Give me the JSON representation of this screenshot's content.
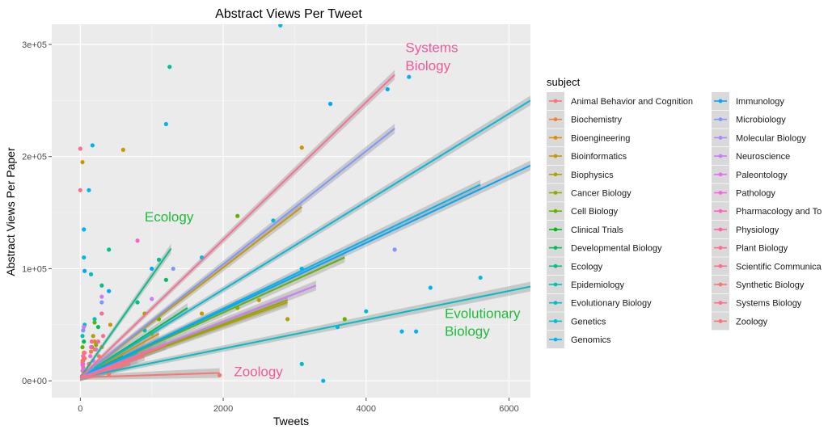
{
  "chart_data": {
    "type": "scatter",
    "title": "Abstract Views Per Tweet",
    "xlabel": "Tweets",
    "ylabel": "Abstract Views Per Paper",
    "xlim": [
      -400,
      6300
    ],
    "ylim": [
      -15000,
      318000
    ],
    "x_ticks": [
      0,
      2000,
      4000,
      6000
    ],
    "y_ticks": [
      0,
      100000,
      200000,
      300000
    ],
    "x_tick_labels": [
      "0",
      "2000",
      "4000",
      "6000"
    ],
    "y_tick_labels": [
      "0e+00",
      "1e+05",
      "2e+05",
      "3e+05"
    ],
    "grid": true,
    "legend_title": "subject",
    "legend_position": "right",
    "series": [
      {
        "name": "Animal Behavior and Cognition",
        "color": "#F8766D",
        "points": [
          [
            30,
            9000
          ],
          [
            120,
            15000
          ],
          [
            260,
            22000
          ]
        ],
        "fit": {
          "x": [
            0,
            700
          ],
          "y": [
            2000,
            15000
          ]
        }
      },
      {
        "name": "Biochemistry",
        "color": "#EC8239",
        "points": [
          [
            40,
            12000
          ],
          [
            150,
            26000
          ],
          [
            300,
            30000
          ]
        ],
        "fit": {
          "x": [
            0,
            900
          ],
          "y": [
            2000,
            30000
          ]
        }
      },
      {
        "name": "Bioengineering",
        "color": "#DB8E00",
        "points": [
          [
            60,
            20000
          ],
          [
            200,
            35000
          ],
          [
            420,
            50000
          ]
        ],
        "fit": {
          "x": [
            0,
            1100
          ],
          "y": [
            3000,
            42000
          ]
        }
      },
      {
        "name": "Bioinformatics",
        "color": "#C79800",
        "points": [
          [
            30,
            195000
          ],
          [
            3100,
            208000
          ],
          [
            600,
            206000
          ],
          [
            800,
            70000
          ],
          [
            1700,
            60000
          ],
          [
            2500,
            72000
          ]
        ],
        "fit": {
          "x": [
            0,
            3100
          ],
          "y": [
            3000,
            155000
          ]
        }
      },
      {
        "name": "Biophysics",
        "color": "#AEA200",
        "points": [
          [
            50,
            25000
          ],
          [
            180,
            40000
          ],
          [
            900,
            60000
          ],
          [
            2900,
            55000
          ]
        ],
        "fit": {
          "x": [
            0,
            2900
          ],
          "y": [
            3000,
            70000
          ]
        }
      },
      {
        "name": "Cancer Biology",
        "color": "#8FAA00",
        "points": [
          [
            40,
            18000
          ],
          [
            220,
            32000
          ],
          [
            1000,
            42000
          ],
          [
            2200,
            65000
          ]
        ],
        "fit": {
          "x": [
            0,
            2900
          ],
          "y": [
            3000,
            72000
          ]
        }
      },
      {
        "name": "Cell Biology",
        "color": "#64B200",
        "points": [
          [
            30,
            30000
          ],
          [
            200,
            52000
          ],
          [
            1100,
            55000
          ],
          [
            2200,
            147000
          ],
          [
            3700,
            55000
          ]
        ],
        "fit": {
          "x": [
            0,
            3700
          ],
          "y": [
            3000,
            110000
          ]
        }
      },
      {
        "name": "Clinical Trials",
        "color": "#00B81B",
        "points": [
          [
            40,
            22000
          ],
          [
            160,
            30000
          ]
        ],
        "fit": {
          "x": [
            0,
            600
          ],
          "y": [
            3000,
            22000
          ]
        }
      },
      {
        "name": "Developmental Biology",
        "color": "#00BD5C",
        "points": [
          [
            50,
            35000
          ],
          [
            250,
            48000
          ],
          [
            1200,
            90000
          ]
        ],
        "fit": {
          "x": [
            0,
            1500
          ],
          "y": [
            3000,
            65000
          ]
        }
      },
      {
        "name": "Ecology",
        "color": "#00C08D",
        "points": [
          [
            1250,
            280000
          ],
          [
            800,
            70000
          ],
          [
            1100,
            108000
          ],
          [
            400,
            117000
          ],
          [
            300,
            85000
          ]
        ],
        "fit": {
          "x": [
            0,
            1270
          ],
          "y": [
            3000,
            118000
          ]
        }
      },
      {
        "name": "Epidemiology",
        "color": "#00C1B2",
        "points": [
          [
            30,
            40000
          ],
          [
            200,
            55000
          ]
        ],
        "fit": {
          "x": [
            0,
            800
          ],
          "y": [
            3000,
            25000
          ]
        }
      },
      {
        "name": "Evolutionary Biology",
        "color": "#00BFC4",
        "points": [
          [
            60,
            50000
          ],
          [
            150,
            95000
          ],
          [
            900,
            45000
          ],
          [
            3100,
            15000
          ]
        ],
        "fit": {
          "x": [
            0,
            6300
          ],
          "y": [
            3000,
            84000
          ]
        }
      },
      {
        "name": "Genetics",
        "color": "#00BBDA",
        "points": [
          [
            50,
            110000
          ],
          [
            300,
            60000
          ],
          [
            1700,
            110000
          ],
          [
            2700,
            143000
          ],
          [
            4000,
            62000
          ],
          [
            5600,
            92000
          ]
        ],
        "fit": {
          "x": [
            0,
            6300
          ],
          "y": [
            3000,
            250000
          ]
        }
      },
      {
        "name": "Genomics",
        "color": "#00B4EF",
        "points": [
          [
            50,
            135000
          ],
          [
            170,
            210000
          ],
          [
            120,
            170000
          ],
          [
            1200,
            229000
          ],
          [
            2800,
            317000
          ],
          [
            3100,
            100000
          ],
          [
            3400,
            0
          ],
          [
            3600,
            48000
          ],
          [
            4500,
            44000
          ],
          [
            4700,
            44000
          ],
          [
            4600,
            271000
          ],
          [
            4900,
            83000
          ]
        ],
        "fit": {
          "x": [
            0,
            5600
          ],
          "y": [
            3000,
            175000
          ]
        }
      },
      {
        "name": "Immunology",
        "color": "#00A7FF",
        "points": [
          [
            60,
            98000
          ],
          [
            400,
            80000
          ],
          [
            1000,
            100000
          ],
          [
            3500,
            247000
          ],
          [
            4300,
            260000
          ]
        ],
        "fit": {
          "x": [
            0,
            6300
          ],
          "y": [
            3000,
            192000
          ]
        }
      },
      {
        "name": "Microbiology",
        "color": "#7F96FF",
        "points": [
          [
            40,
            45000
          ],
          [
            300,
            70000
          ],
          [
            1300,
            100000
          ],
          [
            4400,
            117000
          ]
        ],
        "fit": {
          "x": [
            0,
            4400
          ],
          "y": [
            3000,
            225000
          ]
        }
      },
      {
        "name": "Molecular Biology",
        "color": "#AC88FF",
        "points": [
          [
            40,
            15000
          ],
          [
            220,
            28000
          ]
        ],
        "fit": {
          "x": [
            0,
            800
          ],
          "y": [
            2000,
            20000
          ]
        }
      },
      {
        "name": "Neuroscience",
        "color": "#CF78FF",
        "points": [
          [
            50,
            48000
          ],
          [
            300,
            75000
          ],
          [
            1000,
            73000
          ],
          [
            2200,
            70000
          ]
        ],
        "fit": {
          "x": [
            0,
            3300
          ],
          "y": [
            3000,
            85000
          ]
        }
      },
      {
        "name": "Paleontology",
        "color": "#E76BF3",
        "points": [
          [
            40,
            10000
          ],
          [
            180,
            18000
          ]
        ],
        "fit": {
          "x": [
            0,
            500
          ],
          "y": [
            2000,
            12000
          ]
        }
      },
      {
        "name": "Pathology",
        "color": "#F763E0",
        "points": [
          [
            30,
            14000
          ],
          [
            140,
            22000
          ]
        ],
        "fit": {
          "x": [
            0,
            600
          ],
          "y": [
            2000,
            15000
          ]
        }
      },
      {
        "name": "Pharmacology and Toxicology",
        "color": "#FF61C3",
        "points": [
          [
            800,
            125000
          ],
          [
            30,
            16000
          ],
          [
            150,
            30000
          ]
        ],
        "fit": {
          "x": [
            0,
            1000
          ],
          "y": [
            2000,
            28000
          ]
        }
      },
      {
        "name": "Physiology",
        "color": "#FF62A5",
        "points": [
          [
            50,
            20000
          ],
          [
            250,
            35000
          ]
        ],
        "fit": {
          "x": [
            0,
            900
          ],
          "y": [
            2000,
            25000
          ]
        }
      },
      {
        "name": "Plant Biology",
        "color": "#FF6C91",
        "points": [
          [
            60,
            25000
          ],
          [
            320,
            40000
          ]
        ],
        "fit": {
          "x": [
            0,
            1200
          ],
          "y": [
            2000,
            32000
          ]
        }
      },
      {
        "name": "Scientific Communication and Education",
        "color": "#FF6C91",
        "points": [
          [
            40,
            22000
          ],
          [
            160,
            35000
          ]
        ],
        "fit": {
          "x": [
            0,
            900
          ],
          "y": [
            2000,
            22000
          ]
        }
      },
      {
        "name": "Synthetic Biology",
        "color": "#F8766D",
        "points": [
          [
            30,
            18000
          ],
          [
            200,
            28000
          ]
        ],
        "fit": {
          "x": [
            0,
            700
          ],
          "y": [
            2000,
            18000
          ]
        }
      },
      {
        "name": "Systems Biology",
        "color": "#FF6C91",
        "points": [
          [
            0,
            207000
          ],
          [
            0,
            170000
          ],
          [
            300,
            60000
          ]
        ],
        "fit": {
          "x": [
            0,
            4400
          ],
          "y": [
            3000,
            273000
          ]
        }
      },
      {
        "name": "Zoology",
        "color": "#F8766D",
        "points": [
          [
            1950,
            5000
          ],
          [
            100,
            8000
          ],
          [
            400,
            6000
          ]
        ],
        "fit": {
          "x": [
            0,
            1950
          ],
          "y": [
            3000,
            7000
          ]
        }
      }
    ],
    "annotations": [
      {
        "text": "Systems",
        "x": 4550,
        "y": 293000,
        "color": "#EC5A9A"
      },
      {
        "text": "Biology",
        "x": 4550,
        "y": 277000,
        "color": "#EC5A9A"
      },
      {
        "text": "Ecology",
        "x": 900,
        "y": 142000,
        "color": "#1EBB3C"
      },
      {
        "text": "Evolutionary",
        "x": 5100,
        "y": 56000,
        "color": "#1EBB3C"
      },
      {
        "text": "Biology",
        "x": 5100,
        "y": 40000,
        "color": "#1EBB3C"
      },
      {
        "text": "Zoology",
        "x": 2150,
        "y": 4000,
        "color": "#EC5A9A"
      }
    ]
  },
  "legend_columns": [
    [
      "Animal Behavior and Cognition",
      "Biochemistry",
      "Bioengineering",
      "Bioinformatics",
      "Biophysics",
      "Cancer Biology",
      "Cell Biology",
      "Clinical Trials",
      "Developmental Biology",
      "Ecology",
      "Epidemiology",
      "Evolutionary Biology",
      "Genetics",
      "Genomics"
    ],
    [
      "Immunology",
      "Microbiology",
      "Molecular Biology",
      "Neuroscience",
      "Paleontology",
      "Pathology",
      "Pharmacology and To",
      "Physiology",
      "Plant Biology",
      "Scientific Communica",
      "Synthetic Biology",
      "Systems Biology",
      "Zoology"
    ]
  ]
}
